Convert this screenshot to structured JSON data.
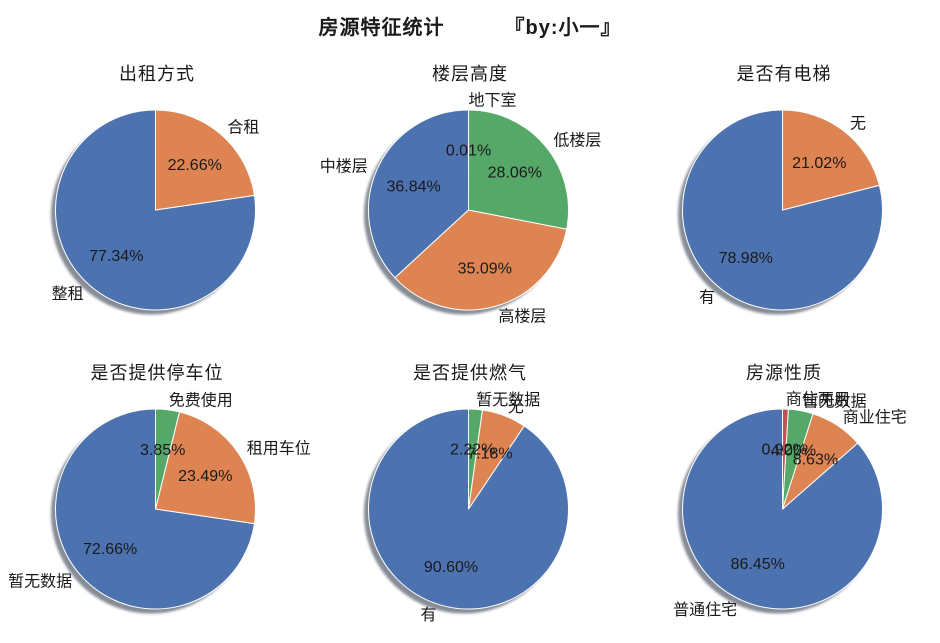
{
  "header": {
    "title": "房源特征统计",
    "byline": "『by:小一』"
  },
  "palette": {
    "blue": "#4C72B0",
    "orange": "#DD8452",
    "green": "#55A868",
    "red": "#C44E52",
    "shadow": "#868C96",
    "text": "#1A1A1A",
    "background": "#FFFFFF"
  },
  "chart_data": [
    {
      "type": "pie",
      "title": "出租方式",
      "startangle": 90,
      "counterclock": true,
      "slices": [
        {
          "label": "整租",
          "value": 77.34,
          "pct_label": "77.34%",
          "color": "blue"
        },
        {
          "label": "合租",
          "value": 22.66,
          "pct_label": "22.66%",
          "color": "orange"
        }
      ]
    },
    {
      "type": "pie",
      "title": "楼层高度",
      "startangle": 90,
      "counterclock": true,
      "slices": [
        {
          "label": "中楼层",
          "value": 36.84,
          "pct_label": "36.84%",
          "color": "blue"
        },
        {
          "label": "高楼层",
          "value": 35.09,
          "pct_label": "35.09%",
          "color": "orange"
        },
        {
          "label": "低楼层",
          "value": 28.06,
          "pct_label": "28.06%",
          "color": "green"
        },
        {
          "label": "地下室",
          "value": 0.01,
          "pct_label": "0.01%",
          "color": "red"
        }
      ]
    },
    {
      "type": "pie",
      "title": "是否有电梯",
      "startangle": 90,
      "counterclock": true,
      "slices": [
        {
          "label": "有",
          "value": 78.98,
          "pct_label": "78.98%",
          "color": "blue"
        },
        {
          "label": "无",
          "value": 21.02,
          "pct_label": "21.02%",
          "color": "orange"
        }
      ]
    },
    {
      "type": "pie",
      "title": "是否提供停车位",
      "startangle": 90,
      "counterclock": true,
      "slices": [
        {
          "label": "暂无数据",
          "value": 72.66,
          "pct_label": "72.66%",
          "color": "blue"
        },
        {
          "label": "租用车位",
          "value": 23.49,
          "pct_label": "23.49%",
          "color": "orange"
        },
        {
          "label": "免费使用",
          "value": 3.85,
          "pct_label": "3.85%",
          "color": "green"
        }
      ]
    },
    {
      "type": "pie",
      "title": "是否提供燃气",
      "startangle": 90,
      "counterclock": true,
      "slices": [
        {
          "label": "有",
          "value": 90.6,
          "pct_label": "90.60%",
          "color": "blue"
        },
        {
          "label": "无",
          "value": 7.18,
          "pct_label": "7.18%",
          "color": "orange"
        },
        {
          "label": "暂无数据",
          "value": 2.22,
          "pct_label": "2.22%",
          "color": "green"
        }
      ]
    },
    {
      "type": "pie",
      "title": "房源性质",
      "startangle": 90,
      "counterclock": true,
      "slices": [
        {
          "label": "普通住宅",
          "value": 86.45,
          "pct_label": "86.45%",
          "color": "blue"
        },
        {
          "label": "商业住宅",
          "value": 8.63,
          "pct_label": "8.63%",
          "color": "orange"
        },
        {
          "label": "暂无数据",
          "value": 4.0,
          "pct_label": "4.00%",
          "color": "green"
        },
        {
          "label": "商住两用",
          "value": 0.92,
          "pct_label": "0.92%",
          "color": "red"
        }
      ]
    }
  ]
}
